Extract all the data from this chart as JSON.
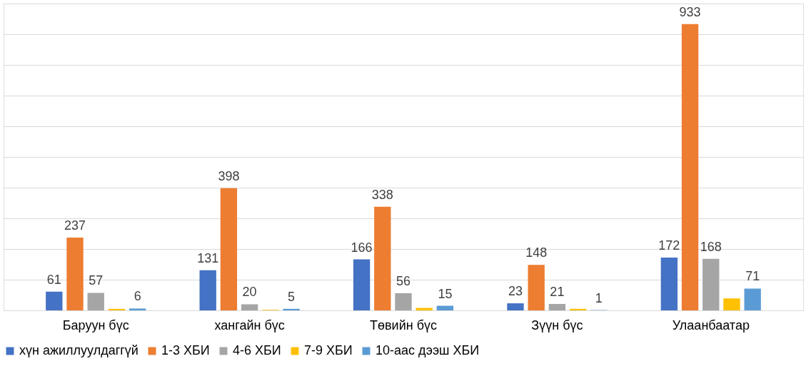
{
  "chart_data": {
    "type": "bar",
    "categories": [
      "Баруун бүс",
      "хангайн бүс",
      "Төвийн бүс",
      "Зүүн бүс",
      "Улаанбаатар"
    ],
    "series": [
      {
        "name": "хүн ажиллуулдаггүй",
        "color": "#4472c4",
        "values": [
          61,
          131,
          166,
          23,
          172
        ],
        "value_labels": [
          "61",
          "131",
          "166",
          "23",
          "172"
        ]
      },
      {
        "name": "1-3 ХБИ",
        "color": "#ed7d31",
        "values": [
          237,
          398,
          338,
          148,
          933
        ],
        "value_labels": [
          "237",
          "398",
          "338",
          "148",
          "933"
        ]
      },
      {
        "name": "4-6 ХБИ",
        "color": "#a5a5a5",
        "values": [
          57,
          20,
          56,
          21,
          168
        ],
        "value_labels": [
          "57",
          "20",
          "56",
          "21",
          "168"
        ]
      },
      {
        "name": "7-9 ХБИ",
        "color": "#ffc000",
        "values": [
          5,
          2,
          8,
          5,
          39
        ],
        "value_labels": [
          null,
          null,
          null,
          null,
          null
        ]
      },
      {
        "name": "10-аас дээш ХБИ",
        "color": "#5b9bd5",
        "values": [
          6,
          5,
          15,
          1,
          71
        ],
        "value_labels": [
          "6",
          "5",
          "15",
          "1",
          "71"
        ]
      }
    ],
    "ylim": [
      0,
      1000
    ],
    "yticks": [
      {
        "value": 0,
        "label": null
      },
      {
        "value": 100,
        "label": null
      },
      {
        "value": 200,
        "label": null
      },
      {
        "value": 300,
        "label": null
      },
      {
        "value": 400,
        "label": null
      },
      {
        "value": 500,
        "label": null
      },
      {
        "value": 600,
        "label": null
      },
      {
        "value": 700,
        "label": null
      },
      {
        "value": 800,
        "label": null
      },
      {
        "value": 900,
        "label": null
      },
      {
        "value": 1000,
        "label": null
      }
    ],
    "tick_labels": "x",
    "grid": "y",
    "legend": "bottom"
  }
}
